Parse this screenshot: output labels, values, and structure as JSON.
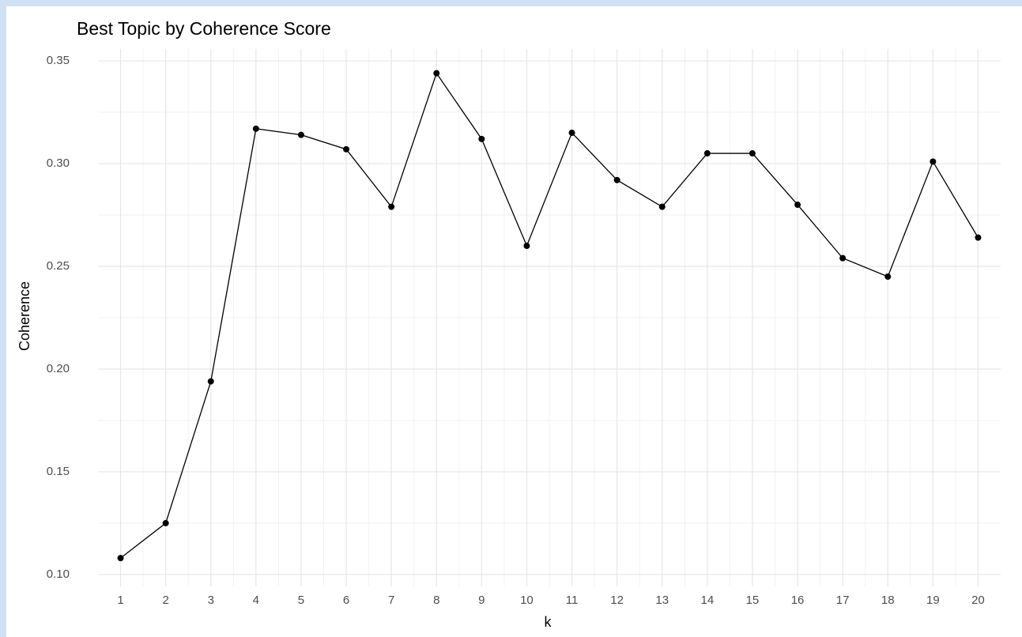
{
  "chart_data": {
    "type": "line",
    "title": "Best Topic by Coherence Score",
    "x_label": "k",
    "y_label": "Coherence",
    "x": [
      1,
      2,
      3,
      4,
      5,
      6,
      7,
      8,
      9,
      10,
      11,
      12,
      13,
      14,
      15,
      16,
      17,
      18,
      19,
      20
    ],
    "series": [
      {
        "name": "Coherence",
        "color": "#000000",
        "values": [
          0.108,
          0.125,
          0.194,
          0.317,
          0.314,
          0.307,
          0.279,
          0.344,
          0.312,
          0.26,
          0.315,
          0.292,
          0.279,
          0.305,
          0.305,
          0.28,
          0.254,
          0.245,
          0.301,
          0.264
        ]
      }
    ],
    "xlim": [
      0.5,
      20.5
    ],
    "xticks": [
      1,
      2,
      3,
      4,
      5,
      6,
      7,
      8,
      9,
      10,
      11,
      12,
      13,
      14,
      15,
      16,
      17,
      18,
      19,
      20
    ],
    "ylim": [
      0.0942,
      0.3558
    ],
    "yticks": [
      {
        "value": 0.1,
        "label": "0.10"
      },
      {
        "value": 0.15,
        "label": "0.15"
      },
      {
        "value": 0.2,
        "label": "0.20"
      },
      {
        "value": 0.25,
        "label": "0.25"
      },
      {
        "value": 0.3,
        "label": "0.30"
      },
      {
        "value": 0.35,
        "label": "0.35"
      }
    ],
    "grid": true,
    "minor_grid": true
  }
}
